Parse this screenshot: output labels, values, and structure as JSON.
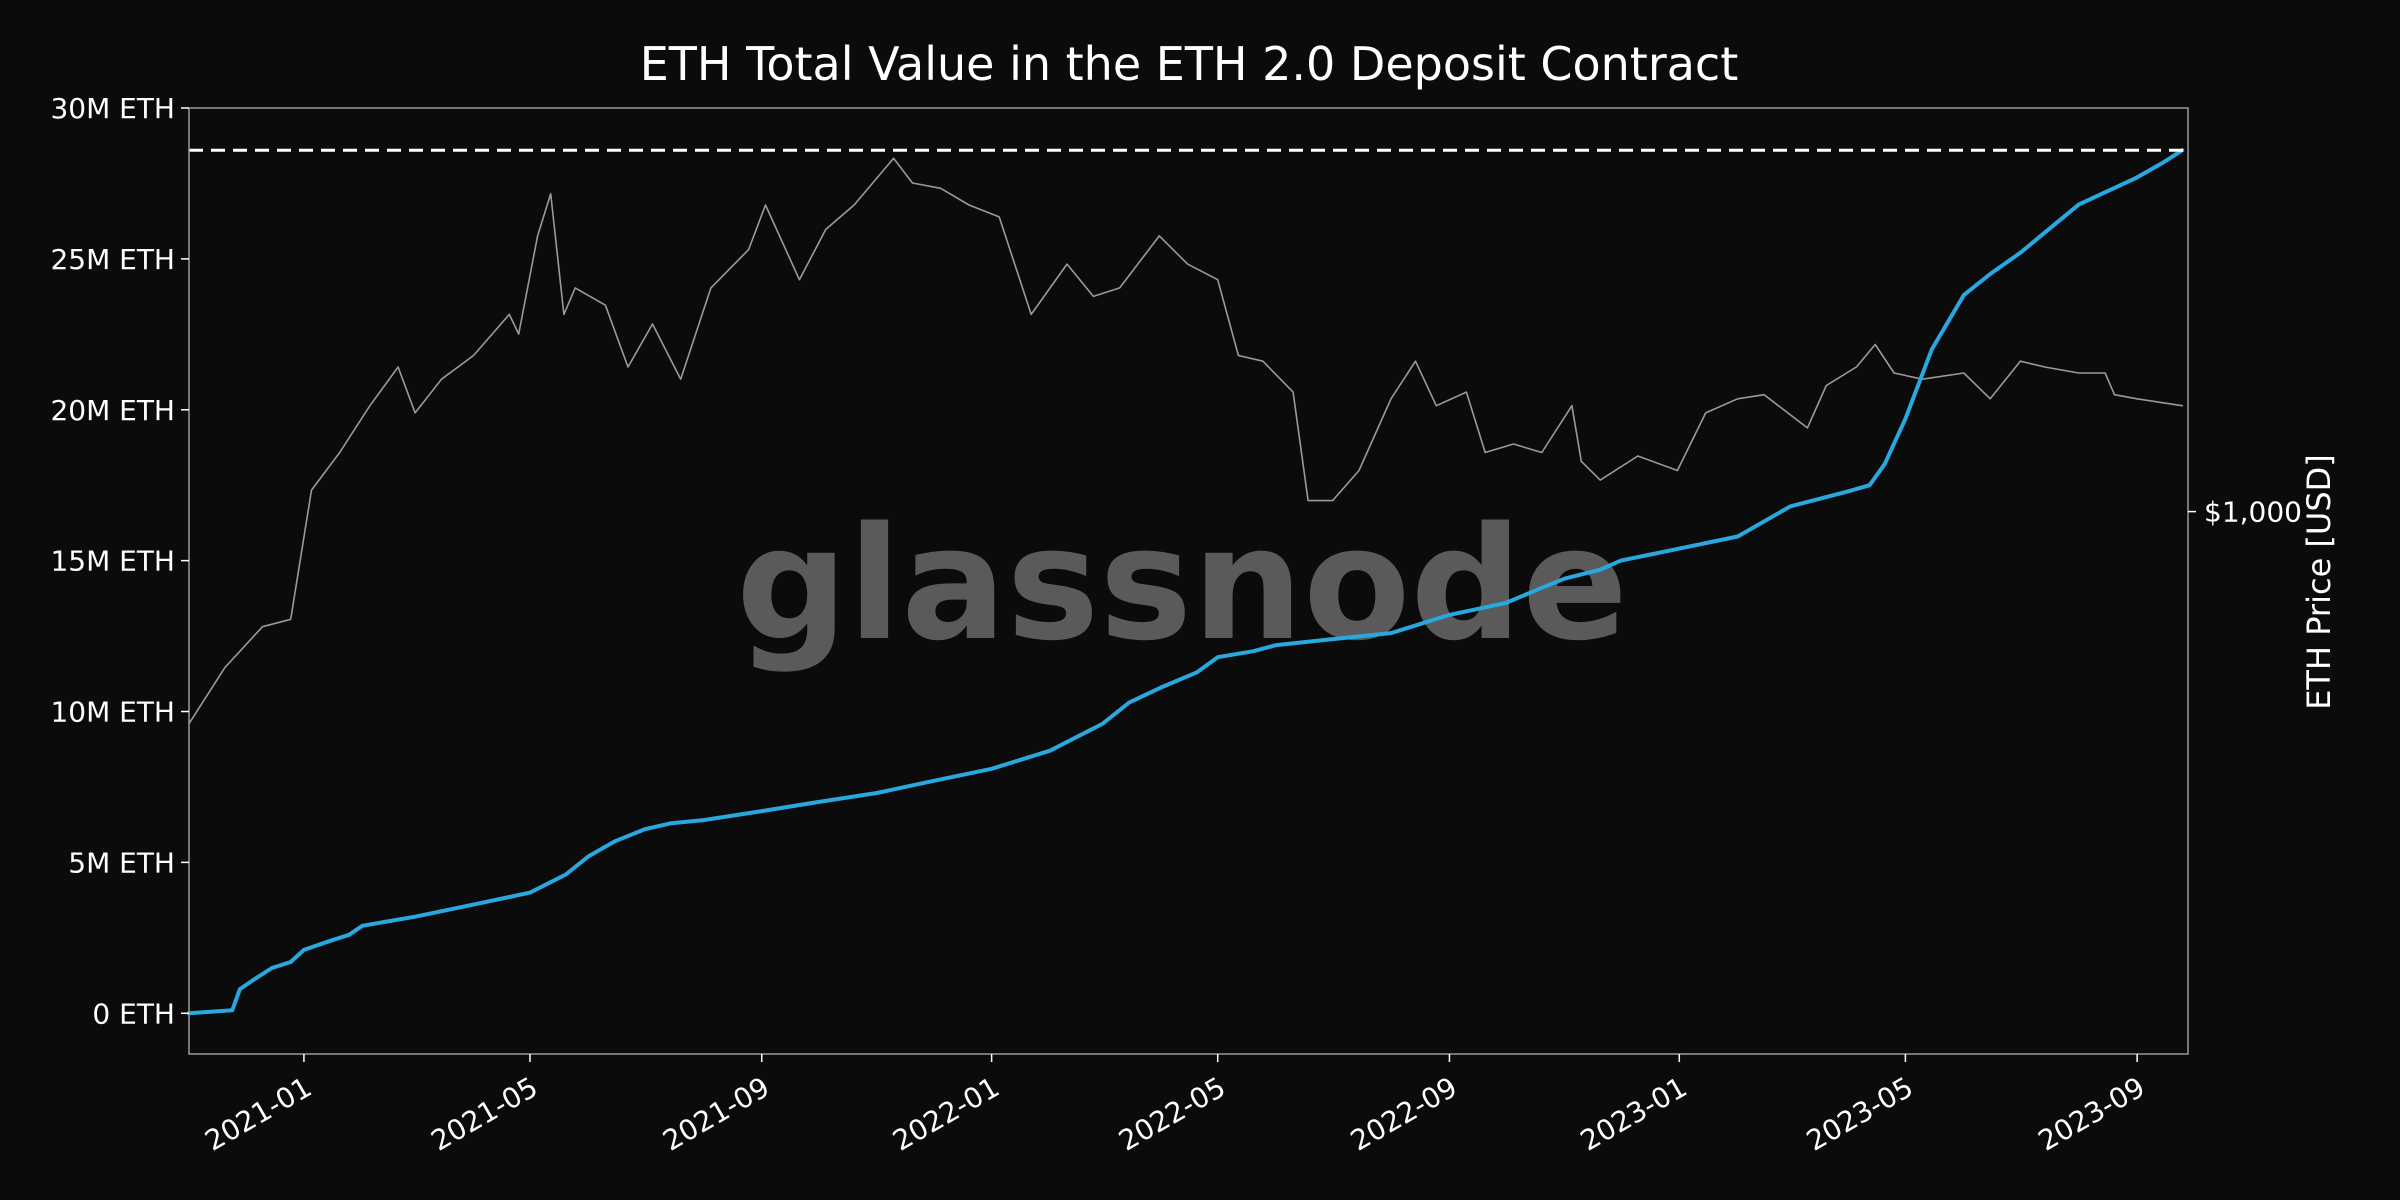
{
  "chart_data": {
    "type": "line",
    "title": "ETH Total Value in the ETH 2.0 Deposit Contract",
    "xlabel": "",
    "ylabel": "",
    "y2label": "ETH Price [USD]",
    "watermark": "glassnode",
    "xlim": [
      "2020-11-01",
      "2023-09-28"
    ],
    "ylim": [
      -1350000,
      30000000
    ],
    "y2_scale": "log",
    "y2lim": [
      90,
      6000
    ],
    "x_ticks": [
      "2021-01",
      "2021-05",
      "2021-09",
      "2022-01",
      "2022-05",
      "2022-09",
      "2023-01",
      "2023-05",
      "2023-09"
    ],
    "y_ticks": [
      {
        "value": 0,
        "label": "0 ETH"
      },
      {
        "value": 5000000,
        "label": "5M ETH"
      },
      {
        "value": 10000000,
        "label": "10M ETH"
      },
      {
        "value": 15000000,
        "label": "15M ETH"
      },
      {
        "value": 20000000,
        "label": "20M ETH"
      },
      {
        "value": 25000000,
        "label": "25M ETH"
      },
      {
        "value": 30000000,
        "label": "30M ETH"
      }
    ],
    "y2_ticks": [
      {
        "value": 1000,
        "label": "$1,000"
      }
    ],
    "reference_line": {
      "value": 28600000,
      "style": "dashed",
      "color": "#ffffff"
    },
    "grid": false,
    "colors": {
      "background": "#0b0b0b",
      "text": "#ffffff",
      "balance": "#29a8e0",
      "price": "#9a9a9a",
      "frame": "#9a9a9a",
      "watermark": "#5a5a5a"
    },
    "series": [
      {
        "axis": "left",
        "style": "balance",
        "x": [
          "2020-11-01",
          "2020-11-24",
          "2020-11-28",
          "2020-12-05",
          "2020-12-15",
          "2020-12-25",
          "2021-01-01",
          "2021-01-15",
          "2021-01-25",
          "2021-02-01",
          "2021-03-01",
          "2021-04-01",
          "2021-05-01",
          "2021-05-20",
          "2021-06-01",
          "2021-06-15",
          "2021-07-01",
          "2021-07-15",
          "2021-08-01",
          "2021-09-01",
          "2021-10-01",
          "2021-11-01",
          "2021-12-01",
          "2022-01-01",
          "2022-02-01",
          "2022-03-01",
          "2022-03-15",
          "2022-04-01",
          "2022-04-20",
          "2022-05-01",
          "2022-05-20",
          "2022-06-01",
          "2022-07-01",
          "2022-08-01",
          "2022-09-01",
          "2022-10-01",
          "2022-10-20",
          "2022-11-01",
          "2022-11-20",
          "2022-12-01",
          "2023-01-01",
          "2023-02-01",
          "2023-03-01",
          "2023-04-01",
          "2023-04-12",
          "2023-04-20",
          "2023-05-01",
          "2023-05-15",
          "2023-06-01",
          "2023-06-15",
          "2023-07-01",
          "2023-08-01",
          "2023-09-01",
          "2023-09-15",
          "2023-09-25"
        ],
        "values": [
          0,
          100000,
          800000,
          1100000,
          1500000,
          1700000,
          2100000,
          2400000,
          2600000,
          2900000,
          3200000,
          3600000,
          4000000,
          4600000,
          5200000,
          5700000,
          6100000,
          6300000,
          6400000,
          6700000,
          7000000,
          7300000,
          7700000,
          8100000,
          8700000,
          9600000,
          10300000,
          10800000,
          11300000,
          11800000,
          12000000,
          12200000,
          12400000,
          12600000,
          13200000,
          13600000,
          14100000,
          14400000,
          14700000,
          15000000,
          15400000,
          15800000,
          16800000,
          17300000,
          17500000,
          18200000,
          19700000,
          22000000,
          23800000,
          24500000,
          25200000,
          26800000,
          27700000,
          28200000,
          28600000
        ]
      },
      {
        "axis": "right",
        "style": "price",
        "x": [
          "2020-11-01",
          "2020-11-20",
          "2020-12-10",
          "2020-12-25",
          "2021-01-05",
          "2021-01-20",
          "2021-02-05",
          "2021-02-20",
          "2021-03-01",
          "2021-03-15",
          "2021-04-01",
          "2021-04-20",
          "2021-04-25",
          "2021-05-05",
          "2021-05-12",
          "2021-05-19",
          "2021-05-25",
          "2021-06-10",
          "2021-06-22",
          "2021-07-05",
          "2021-07-20",
          "2021-08-05",
          "2021-08-25",
          "2021-09-03",
          "2021-09-21",
          "2021-10-05",
          "2021-10-20",
          "2021-11-10",
          "2021-11-20",
          "2021-12-05",
          "2021-12-20",
          "2022-01-05",
          "2022-01-22",
          "2022-02-10",
          "2022-02-24",
          "2022-03-10",
          "2022-03-31",
          "2022-04-15",
          "2022-05-01",
          "2022-05-12",
          "2022-05-25",
          "2022-06-10",
          "2022-06-18",
          "2022-07-01",
          "2022-07-15",
          "2022-08-01",
          "2022-08-14",
          "2022-08-25",
          "2022-09-10",
          "2022-09-20",
          "2022-10-05",
          "2022-10-20",
          "2022-11-05",
          "2022-11-10",
          "2022-11-20",
          "2022-12-10",
          "2022-12-31",
          "2023-01-15",
          "2023-02-01",
          "2023-02-15",
          "2023-03-10",
          "2023-03-20",
          "2023-04-05",
          "2023-04-15",
          "2023-04-25",
          "2023-05-10",
          "2023-06-01",
          "2023-06-15",
          "2023-07-01",
          "2023-07-14",
          "2023-08-01",
          "2023-08-15",
          "2023-08-20",
          "2023-09-01",
          "2023-09-25"
        ],
        "values": [
          390,
          500,
          600,
          620,
          1100,
          1300,
          1600,
          1900,
          1550,
          1800,
          2000,
          2400,
          2200,
          3400,
          4100,
          2400,
          2700,
          2500,
          1900,
          2300,
          1800,
          2700,
          3200,
          3900,
          2800,
          3500,
          3900,
          4800,
          4300,
          4200,
          3900,
          3700,
          2400,
          3000,
          2600,
          2700,
          3400,
          3000,
          2800,
          2000,
          1950,
          1700,
          1050,
          1050,
          1200,
          1650,
          1950,
          1600,
          1700,
          1300,
          1350,
          1300,
          1600,
          1250,
          1150,
          1280,
          1200,
          1550,
          1650,
          1680,
          1450,
          1750,
          1900,
          2100,
          1850,
          1800,
          1850,
          1650,
          1950,
          1900,
          1850,
          1850,
          1680,
          1650,
          1600
        ]
      }
    ]
  }
}
